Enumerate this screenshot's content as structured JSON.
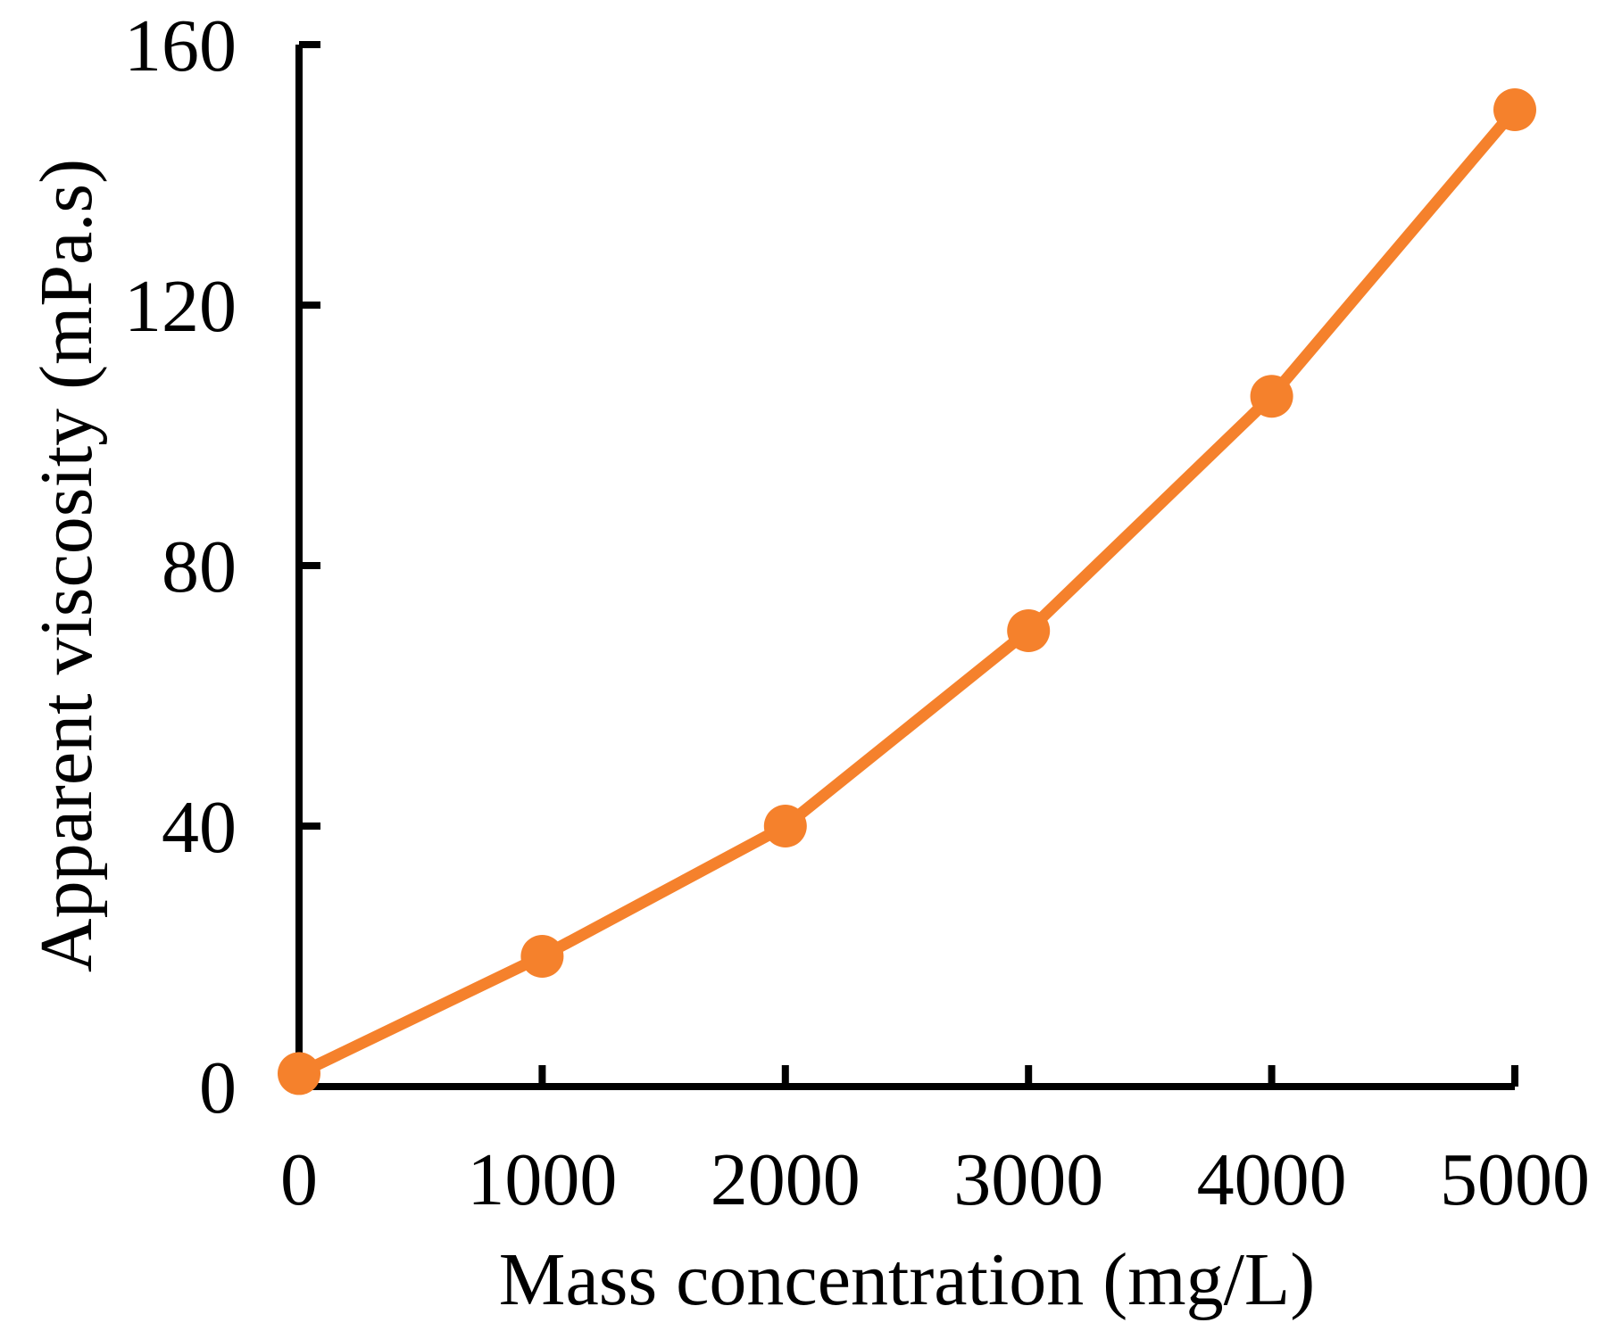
{
  "figure": {
    "background": "#FFFFFF",
    "title": ""
  },
  "chart_data": {
    "type": "line",
    "title": "",
    "xlabel": "Mass concentration (mg/L)",
    "ylabel": "Apparent viscosity (mPa.s)",
    "x": [
      0,
      1000,
      2000,
      3000,
      4000,
      5000
    ],
    "series": [
      {
        "name": "Apparent viscosity",
        "values": [
          2,
          20,
          40,
          70,
          106,
          150
        ]
      }
    ],
    "x_ticks": [
      0,
      1000,
      2000,
      3000,
      4000,
      5000
    ],
    "y_ticks": [
      0,
      40,
      80,
      120,
      160
    ],
    "xlim": [
      0,
      5000
    ],
    "ylim": [
      0,
      160
    ],
    "grid": false,
    "legend_position": "none",
    "tick_direction": "in",
    "line_color": "#F5812C",
    "marker": "circle",
    "axis_color": "#000000"
  }
}
